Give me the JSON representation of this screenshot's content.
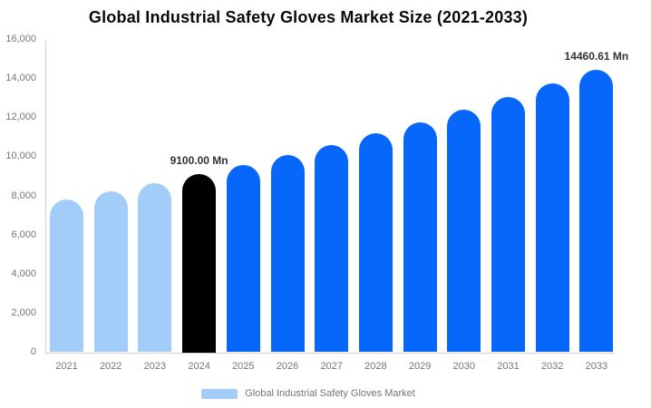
{
  "chart_data": {
    "type": "bar",
    "title": "Global Industrial Safety Gloves Market Size (2021-2033)",
    "xlabel": "",
    "ylabel": "",
    "unit": "Mn",
    "categories": [
      "2021",
      "2022",
      "2023",
      "2024",
      "2025",
      "2026",
      "2027",
      "2028",
      "2029",
      "2030",
      "2031",
      "2032",
      "2033"
    ],
    "values": [
      7798,
      8210,
      8644,
      9100.0,
      9581,
      10086,
      10619,
      11180,
      11770,
      12392,
      13046,
      13735,
      14460.61
    ],
    "bar_colors": [
      "#a3cdf9",
      "#a3cdf9",
      "#a3cdf9",
      "#000000",
      "#0667fa",
      "#0667fa",
      "#0667fa",
      "#0667fa",
      "#0667fa",
      "#0667fa",
      "#0667fa",
      "#0667fa",
      "#0667fa"
    ],
    "annotations": [
      {
        "category": "2024",
        "label": "9100.00 Mn"
      },
      {
        "category": "2033",
        "label": "14460.61 Mn"
      }
    ],
    "ylim": [
      0,
      16000
    ],
    "ytick_values": [
      0,
      2000,
      4000,
      6000,
      8000,
      10000,
      12000,
      14000,
      16000
    ],
    "ytick_labels": [
      "0",
      "2,000",
      "4,000",
      "6,000",
      "8,000",
      "10,000",
      "12,000",
      "14,000",
      "16,000"
    ],
    "grid": false,
    "legend_position": "bottom",
    "legend_label": "Global Industrial Safety Gloves Market",
    "colors": {
      "historical": "#a3cdf9",
      "highlight": "#000000",
      "forecast": "#0667fa",
      "axis": "#cfcfcf",
      "tick_text": "#757575",
      "title_text": "#0a0a0a",
      "value_label_text": "#333333"
    }
  }
}
